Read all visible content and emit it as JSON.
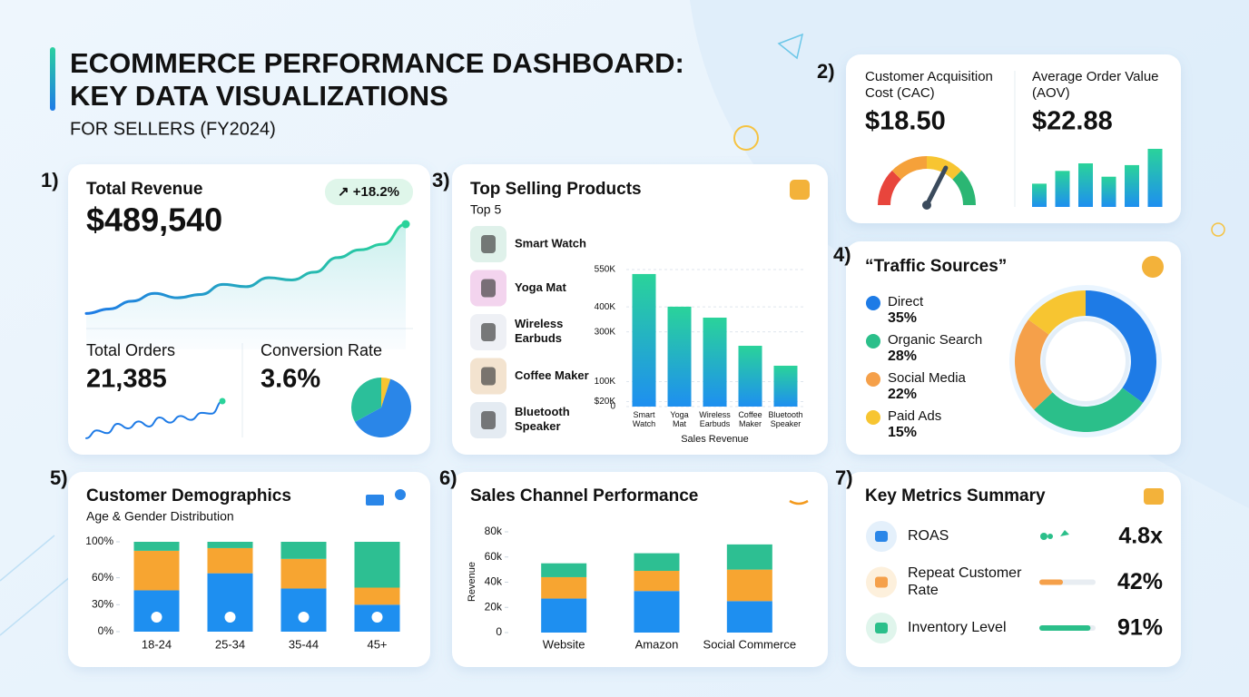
{
  "header": {
    "title_lines": [
      "ECOMMERCE PERFORMANCE DASHBOARD:",
      "KEY DATA VISUALIZATIONS"
    ],
    "subtitle": "FOR SELLERS (FY2024)"
  },
  "revenue": {
    "marker": "1)",
    "title": "Total Revenue",
    "value": "$489,540",
    "change": "↗ +18.2%",
    "trend": [
      20,
      24,
      31,
      38,
      34,
      37,
      46,
      44,
      52,
      50,
      57,
      70,
      77,
      82,
      100
    ],
    "ylim": [
      0,
      100
    ]
  },
  "orders": {
    "label": "Total Orders",
    "value": "21,385",
    "trend": [
      5,
      25,
      18,
      42,
      30,
      48,
      35,
      58,
      45,
      62,
      52,
      70,
      68,
      100
    ],
    "ylim": [
      0,
      100
    ]
  },
  "conversion": {
    "label": "Conversion Rate",
    "value": "3.6%",
    "values": [
      5,
      62,
      33
    ],
    "colors": [
      "#f7c531",
      "#2a86e8",
      "#2bbf9a"
    ]
  },
  "acquisition": {
    "marker": "2)",
    "cac": {
      "label_lines": [
        "Customer Acquisition",
        "Cost (CAC)"
      ],
      "value": "$18.50",
      "gauge": 65,
      "lim": [
        0,
        100
      ]
    },
    "aov": {
      "label_lines": [
        "Average Order Value",
        "(AOV)"
      ],
      "value": "$22.88",
      "values": [
        40,
        62,
        75,
        52,
        72,
        100
      ],
      "ylim": [
        0,
        100
      ]
    }
  },
  "products": {
    "marker": "3)",
    "title": "Top Selling Products",
    "subtitle": "Top 5",
    "items": [
      "Smart Watch",
      "Yoga Mat",
      "Wireless Earbuds",
      "Coffee Maker",
      "Bluetooth Speaker"
    ],
    "chart": {
      "type": "bar",
      "categories": [
        "Smart Watch",
        "Yoga Mat",
        "Wireless Earbuds",
        "Coffee Maker",
        "Bluetooth Speaker"
      ],
      "values": [
        532000,
        401000,
        357000,
        244000,
        164000
      ],
      "ylim": [
        0,
        550000
      ],
      "yticks": [
        {
          "value": 550000,
          "label": "550K"
        },
        {
          "value": 400000,
          "label": "400K"
        },
        {
          "value": 300000,
          "label": "300K"
        },
        {
          "value": 20000,
          "label": "$20K"
        },
        {
          "value": 100000,
          "label": "100K"
        },
        0
      ],
      "xlabel": "Sales Revenue",
      "grid": true
    }
  },
  "traffic": {
    "marker": "4)",
    "title": "“Traffic Sources”",
    "type": "pie",
    "categories": [
      "Direct",
      "Organic Search",
      "Social Media",
      "Paid Ads"
    ],
    "values": [
      35,
      28,
      22,
      15
    ],
    "value_labels": [
      "35%",
      "28%",
      "22%",
      "15%"
    ],
    "colors": [
      "#1e7be6",
      "#2bbf8a",
      "#f5a04a",
      "#f7c531"
    ]
  },
  "demographics": {
    "marker": "5)",
    "title": "Customer Demographics",
    "subtitle": "Age & Gender Distribution",
    "type": "bar",
    "categories": [
      "18-24",
      "25-34",
      "35-44",
      "45+"
    ],
    "series": [
      {
        "color": "#1e8ff0",
        "values": [
          46,
          65,
          48,
          30
        ]
      },
      {
        "color": "#f7a531",
        "values": [
          44,
          28,
          33,
          19
        ]
      },
      {
        "color": "#2dbf92",
        "values": [
          10,
          7,
          19,
          51
        ]
      }
    ],
    "ylim": [
      0,
      100
    ],
    "yticks": [
      {
        "value": 100,
        "label": "100%"
      },
      {
        "value": 60,
        "label": "60%"
      },
      {
        "value": 30,
        "label": "30%"
      },
      {
        "value": 0,
        "label": "0%"
      }
    ]
  },
  "channels": {
    "marker": "6)",
    "title": "Sales Channel Performance",
    "type": "bar",
    "ylabel": "Revenue",
    "categories": [
      "Website",
      "Amazon",
      "Social Commerce"
    ],
    "series": [
      {
        "color": "#1e8ff0",
        "values": [
          27000,
          33000,
          25000
        ]
      },
      {
        "color": "#f7a531",
        "values": [
          17000,
          16000,
          25000
        ]
      },
      {
        "color": "#2dbf92",
        "values": [
          11000,
          14000,
          20000
        ]
      }
    ],
    "ylim": [
      0,
      80000
    ],
    "yticks": [
      {
        "value": 80000,
        "label": "80k"
      },
      {
        "value": 60000,
        "label": "60k"
      },
      {
        "value": 40000,
        "label": "40k"
      },
      {
        "value": 20000,
        "label": "20k"
      },
      0
    ]
  },
  "metrics": {
    "marker": "7)",
    "title": "Key Metrics Summary",
    "xlim": [
      0,
      100
    ],
    "rows": [
      {
        "label_lines": [
          "ROAS"
        ],
        "value": 4.8,
        "value_label": "4.8x"
      },
      {
        "label_lines": [
          "Repeat Customer",
          "Rate"
        ],
        "value": 42,
        "value_label": "42%",
        "color": "#f5a04a"
      },
      {
        "label_lines": [
          "Inventory Level"
        ],
        "value": 91,
        "value_label": "91%",
        "color": "#2bbf8a"
      }
    ]
  }
}
